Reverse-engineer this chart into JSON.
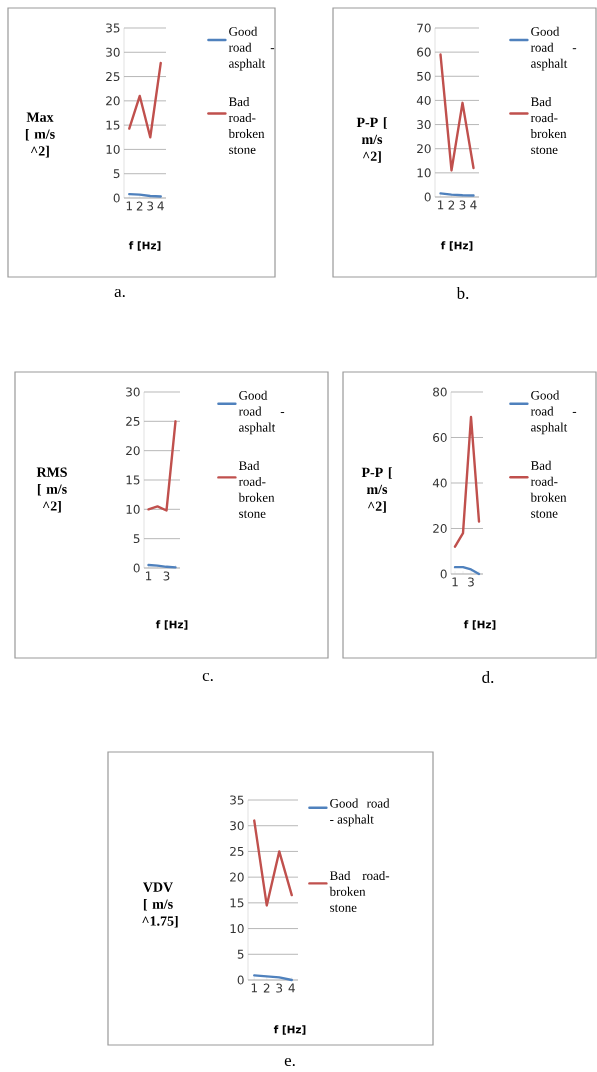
{
  "chart_data": [
    {
      "type": "line",
      "categories": [
        "1",
        "2",
        "3",
        "4"
      ],
      "xlabel": "f [Hz]",
      "ylabel": "Max [ m/s ^2]",
      "ylim": [
        0,
        35
      ],
      "yticks": [
        0,
        5,
        10,
        15,
        20,
        25,
        30,
        35
      ],
      "grid": "y",
      "legend": "right",
      "annotations": [
        "a."
      ],
      "series": [
        {
          "name": "Good road - asphalt",
          "color": "#4f81bd",
          "values": [
            0.8,
            0.7,
            0.4,
            0.3
          ]
        },
        {
          "name": "Bad road-broken stone",
          "color": "#c0504d",
          "values": [
            14.3,
            21,
            12.5,
            27.8
          ]
        }
      ]
    },
    {
      "type": "line",
      "categories": [
        "1",
        "2",
        "3",
        "4"
      ],
      "xlabel": "f [Hz]",
      "ylabel": "P-P [ m/s ^2]",
      "ylim": [
        0,
        70
      ],
      "yticks": [
        0,
        10,
        20,
        30,
        40,
        50,
        60,
        70
      ],
      "grid": "y",
      "legend": "right",
      "annotations": [
        "b."
      ],
      "series": [
        {
          "name": "Good road - asphalt",
          "color": "#4f81bd",
          "values": [
            1.5,
            1,
            0.7,
            0.6
          ]
        },
        {
          "name": "Bad road-broken stone",
          "color": "#c0504d",
          "values": [
            59,
            11,
            39,
            12
          ]
        }
      ]
    },
    {
      "type": "line",
      "categories": [
        "1",
        null,
        "3",
        null
      ],
      "xlabel": "f [Hz]",
      "ylabel": "RMS [ m/s ^2]",
      "ylim": [
        0,
        30
      ],
      "yticks": [
        0,
        5,
        10,
        15,
        20,
        25,
        30
      ],
      "grid": "y",
      "legend": "right",
      "annotations": [
        "c."
      ],
      "series": [
        {
          "name": "Good road - asphalt",
          "color": "#4f81bd",
          "values": [
            0.5,
            0.4,
            0.2,
            0.1
          ]
        },
        {
          "name": "Bad road-broken stone",
          "color": "#c0504d",
          "values": [
            10,
            10.5,
            9.8,
            25
          ]
        }
      ]
    },
    {
      "type": "line",
      "categories": [
        "1",
        null,
        "3",
        null
      ],
      "xlabel": "f [Hz]",
      "ylabel": "P-P [ m/s ^2]",
      "ylim": [
        0,
        80
      ],
      "yticks": [
        0,
        20,
        40,
        60,
        80
      ],
      "grid": "y",
      "legend": "right",
      "annotations": [
        "d."
      ],
      "series": [
        {
          "name": "Good road - asphalt",
          "color": "#4f81bd",
          "values": [
            3,
            3,
            2,
            0
          ]
        },
        {
          "name": "Bad road-broken stone",
          "color": "#c0504d",
          "values": [
            12,
            18,
            69,
            23
          ]
        }
      ]
    },
    {
      "type": "line",
      "categories": [
        "1",
        "2",
        "3",
        "4"
      ],
      "xlabel": "f [Hz]",
      "ylabel": "VDV [ m/s ^1.75]",
      "ylim": [
        0,
        35
      ],
      "yticks": [
        0,
        5,
        10,
        15,
        20,
        25,
        30,
        35
      ],
      "grid": "y",
      "legend": "right",
      "annotations": [
        "e."
      ],
      "series": [
        {
          "name": "Good road - asphalt",
          "color": "#4f81bd",
          "values": [
            0.9,
            0.7,
            0.5,
            0
          ]
        },
        {
          "name": "Bad road-broken stone",
          "color": "#c0504d",
          "values": [
            31,
            14.5,
            25,
            16.5
          ]
        }
      ]
    }
  ]
}
